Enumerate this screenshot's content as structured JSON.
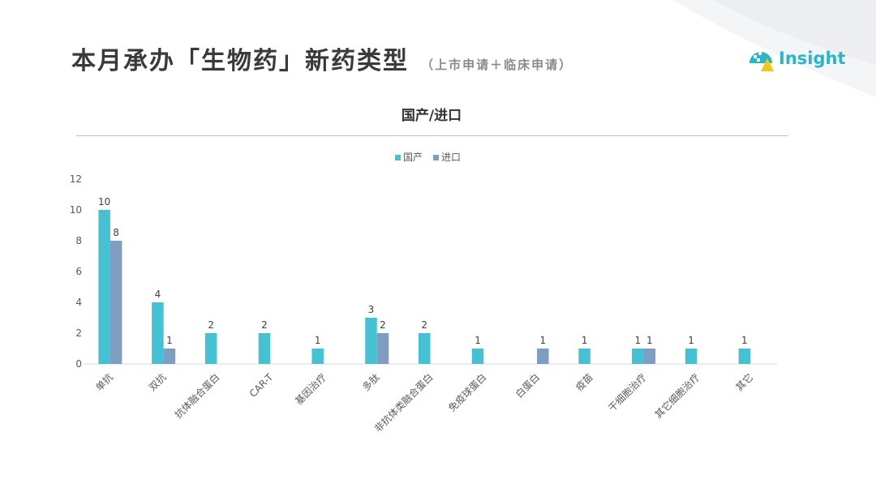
{
  "header": {
    "title": "本月承办「生物药」新药类型",
    "subtitle": "（上市申请＋临床申请）",
    "logo_text": "Insight"
  },
  "colors": {
    "domestic": "#45C1D4",
    "imported": "#7F9CC1",
    "logo": "#29B6C8"
  },
  "chart_data": {
    "type": "bar",
    "title": "国产/进口",
    "legend_position": "top",
    "categories": [
      "单抗",
      "双抗",
      "抗体融合蛋白",
      "CAR-T",
      "基因治疗",
      "多肽",
      "非抗体类融合蛋白",
      "免疫球蛋白",
      "白蛋白",
      "疫苗",
      "干细胞治疗",
      "其它细胞治疗",
      "其它"
    ],
    "series": [
      {
        "name": "国产",
        "values": [
          10,
          4,
          2,
          2,
          1,
          3,
          2,
          1,
          null,
          1,
          1,
          1,
          1
        ]
      },
      {
        "name": "进口",
        "values": [
          8,
          1,
          null,
          null,
          null,
          2,
          null,
          null,
          1,
          null,
          1,
          null,
          null
        ]
      }
    ],
    "yticks": [
      "0",
      "2",
      "4",
      "6",
      "8",
      "10",
      "12"
    ],
    "ylim": [
      0,
      12
    ],
    "grid": false
  }
}
